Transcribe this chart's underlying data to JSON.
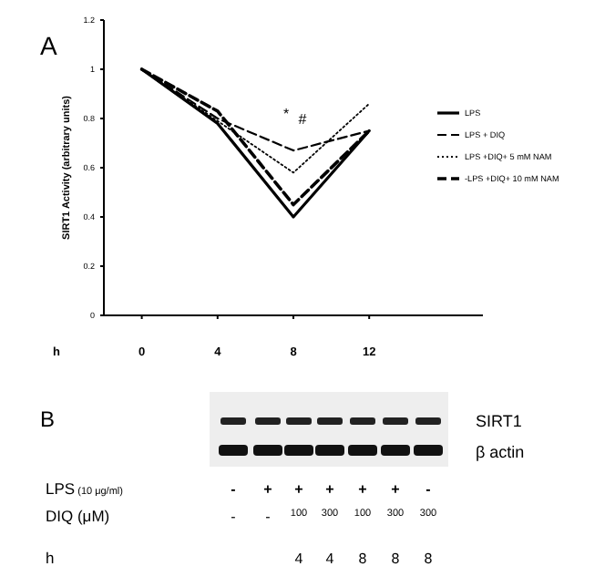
{
  "chart_data": [
    {
      "type": "line",
      "title": "A",
      "xlabel": "h",
      "ylabel": "SIRT1 Activity (arbitrary units)",
      "x": [
        0,
        4,
        8,
        12
      ],
      "xlim": [
        -2,
        18
      ],
      "xticks": [
        0,
        4,
        8,
        12
      ],
      "ylim": [
        0,
        1.2
      ],
      "yticks": [
        0,
        0.2,
        0.4,
        0.6,
        0.8,
        1,
        1.2
      ],
      "legend": "right",
      "grid": false,
      "marker": "none",
      "annotations": [
        "*",
        "#"
      ],
      "series": [
        {
          "name": "LPS",
          "color": "#000000",
          "line_style": "solid",
          "values": [
            1,
            0.78,
            0.4,
            0.75
          ]
        },
        {
          "name": "LPS + DIQ",
          "color": "#000000",
          "line_style": "dashed",
          "values": [
            1,
            0.8,
            0.67,
            0.75
          ]
        },
        {
          "name": "LPS +DIQ+ 5 mM NAM",
          "color": "#000000",
          "line_style": "dotted",
          "values": [
            1,
            0.79,
            0.58,
            0.86
          ]
        },
        {
          "name": "-LPS +DIQ+ 10 mM NAM",
          "color": "#000000",
          "line_style": "dashed",
          "values": [
            1,
            0.83,
            0.45,
            0.75
          ]
        }
      ]
    },
    {
      "type": "other",
      "title": "B",
      "annotations": [
        "SIRT1",
        "β actin",
        "LPS (10 μg/ml)",
        "-",
        "+",
        "+",
        "+",
        "+",
        "+",
        "-",
        "DIQ (μM)",
        "-",
        "-",
        "100",
        "300",
        "100",
        "300",
        "300",
        "h",
        "4",
        "4",
        "8",
        "8",
        "8"
      ]
    }
  ]
}
